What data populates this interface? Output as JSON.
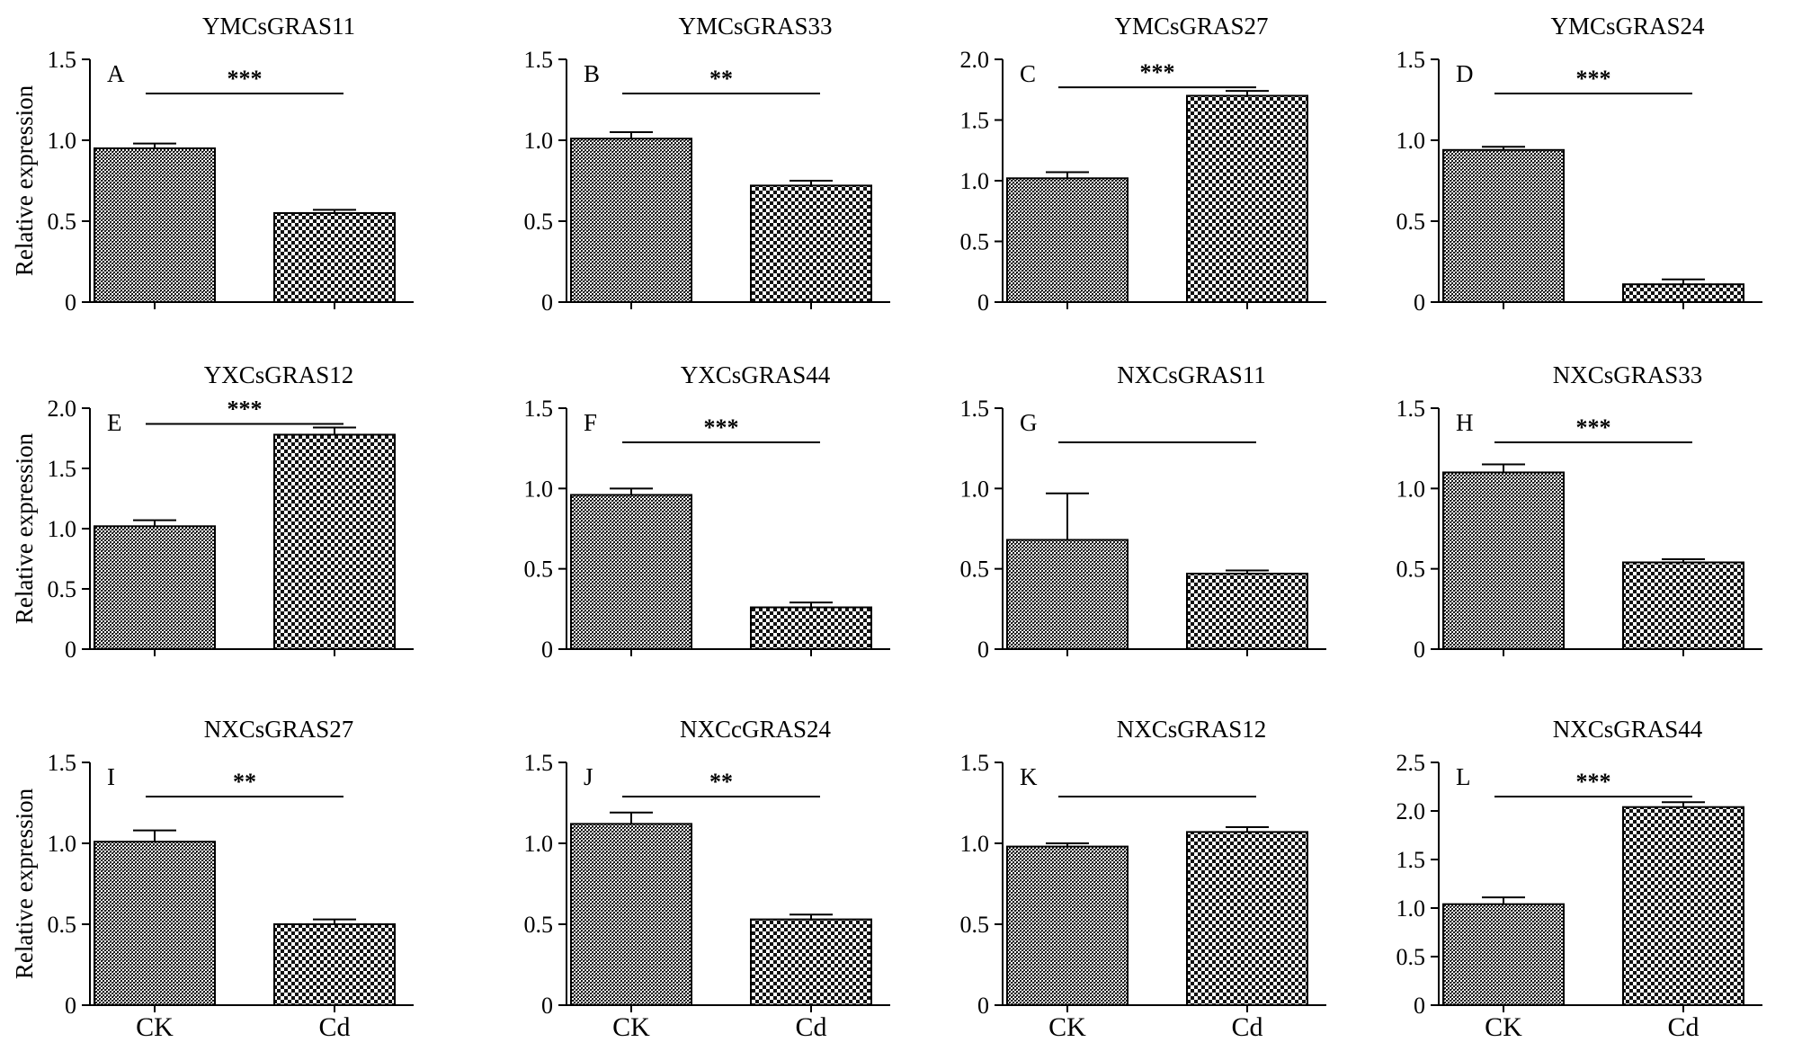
{
  "figure": {
    "ylabel": "Relative expression"
  },
  "chart_data": [
    {
      "type": "bar",
      "letter": "A",
      "title": "YMCsGRAS11",
      "categories": [
        "CK",
        "Cd"
      ],
      "values": [
        0.95,
        0.55
      ],
      "errors": [
        0.03,
        0.02
      ],
      "ylim": [
        0,
        1.5
      ],
      "yticks": [
        "0",
        "0.5",
        "1.0",
        "1.5"
      ],
      "significance": "***"
    },
    {
      "type": "bar",
      "letter": "B",
      "title": "YMCsGRAS33",
      "categories": [
        "CK",
        "Cd"
      ],
      "values": [
        1.01,
        0.72
      ],
      "errors": [
        0.04,
        0.03
      ],
      "ylim": [
        0,
        1.5
      ],
      "yticks": [
        "0",
        "0.5",
        "1.0",
        "1.5"
      ],
      "significance": "**"
    },
    {
      "type": "bar",
      "letter": "C",
      "title": "YMCsGRAS27",
      "categories": [
        "CK",
        "Cd"
      ],
      "values": [
        1.02,
        1.7
      ],
      "errors": [
        0.05,
        0.04
      ],
      "ylim": [
        0,
        2.0
      ],
      "yticks": [
        "0",
        "0.5",
        "1.0",
        "1.5",
        "2.0"
      ],
      "significance": "***"
    },
    {
      "type": "bar",
      "letter": "D",
      "title": "YMCsGRAS24",
      "categories": [
        "CK",
        "Cd"
      ],
      "values": [
        0.94,
        0.11
      ],
      "errors": [
        0.02,
        0.03
      ],
      "ylim": [
        0,
        1.5
      ],
      "yticks": [
        "0",
        "0.5",
        "1.0",
        "1.5"
      ],
      "significance": "***"
    },
    {
      "type": "bar",
      "letter": "E",
      "title": "YXCsGRAS12",
      "categories": [
        "CK",
        "Cd"
      ],
      "values": [
        1.02,
        1.78
      ],
      "errors": [
        0.05,
        0.06
      ],
      "ylim": [
        0,
        2.0
      ],
      "yticks": [
        "0",
        "0.5",
        "1.0",
        "1.5",
        "2.0"
      ],
      "significance": "***"
    },
    {
      "type": "bar",
      "letter": "F",
      "title": "YXCsGRAS44",
      "categories": [
        "CK",
        "Cd"
      ],
      "values": [
        0.96,
        0.26
      ],
      "errors": [
        0.04,
        0.03
      ],
      "ylim": [
        0,
        1.5
      ],
      "yticks": [
        "0",
        "0.5",
        "1.0",
        "1.5"
      ],
      "significance": "***"
    },
    {
      "type": "bar",
      "letter": "G",
      "title": "NXCsGRAS11",
      "categories": [
        "CK",
        "Cd"
      ],
      "values": [
        0.68,
        0.47
      ],
      "errors": [
        0.29,
        0.02
      ],
      "ylim": [
        0,
        1.5
      ],
      "yticks": [
        "0",
        "0.5",
        "1.0",
        "1.5"
      ],
      "significance": ""
    },
    {
      "type": "bar",
      "letter": "H",
      "title": "NXCsGRAS33",
      "categories": [
        "CK",
        "Cd"
      ],
      "values": [
        1.1,
        0.54
      ],
      "errors": [
        0.05,
        0.02
      ],
      "ylim": [
        0,
        1.5
      ],
      "yticks": [
        "0",
        "0.5",
        "1.0",
        "1.5"
      ],
      "significance": "***"
    },
    {
      "type": "bar",
      "letter": "I",
      "title": "NXCsGRAS27",
      "categories": [
        "CK",
        "Cd"
      ],
      "values": [
        1.01,
        0.5
      ],
      "errors": [
        0.07,
        0.03
      ],
      "ylim": [
        0,
        1.5
      ],
      "yticks": [
        "0",
        "0.5",
        "1.0",
        "1.5"
      ],
      "significance": "**"
    },
    {
      "type": "bar",
      "letter": "J",
      "title": "NXCcGRAS24",
      "categories": [
        "CK",
        "Cd"
      ],
      "values": [
        1.12,
        0.53
      ],
      "errors": [
        0.07,
        0.03
      ],
      "ylim": [
        0,
        1.5
      ],
      "yticks": [
        "0",
        "0.5",
        "1.0",
        "1.5"
      ],
      "significance": "**"
    },
    {
      "type": "bar",
      "letter": "K",
      "title": "NXCsGRAS12",
      "categories": [
        "CK",
        "Cd"
      ],
      "values": [
        0.98,
        1.07
      ],
      "errors": [
        0.02,
        0.03
      ],
      "ylim": [
        0,
        1.5
      ],
      "yticks": [
        "0",
        "0.5",
        "1.0",
        "1.5"
      ],
      "significance": ""
    },
    {
      "type": "bar",
      "letter": "L",
      "title": "NXCsGRAS44",
      "categories": [
        "CK",
        "Cd"
      ],
      "values": [
        1.04,
        2.04
      ],
      "errors": [
        0.07,
        0.05
      ],
      "ylim": [
        0,
        2.5
      ],
      "yticks": [
        "0",
        "0.5",
        "1.0",
        "1.5",
        "2.0",
        "2.5"
      ],
      "significance": "***"
    }
  ]
}
